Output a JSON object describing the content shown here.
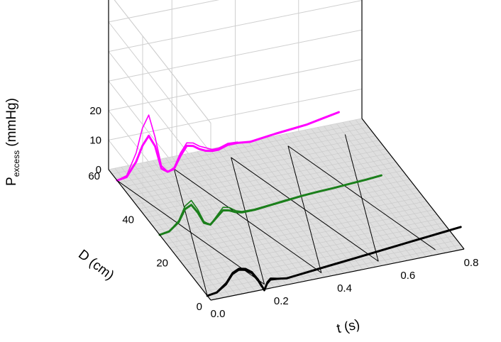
{
  "chart_data": {
    "type": "line",
    "projection": "3d",
    "axes": {
      "t": {
        "label": "t (s)",
        "ticks": [
          "0.0",
          "0.2",
          "0.4",
          "0.6",
          "0.8"
        ],
        "range": [
          0,
          0.8
        ]
      },
      "D": {
        "label": "D (cm)",
        "ticks": [
          "0",
          "20",
          "40",
          "60"
        ],
        "range": [
          0,
          60
        ]
      },
      "P": {
        "label_main": "P",
        "label_sub": "excess",
        "label_unit": " (mmHg)",
        "ticks": [
          "0",
          "10",
          "20"
        ],
        "range": [
          0,
          25
        ]
      }
    },
    "grid": true,
    "floor_plane": true,
    "series": [
      {
        "color": "#ff00ff",
        "D": 55,
        "t": [
          0.0,
          0.03,
          0.06,
          0.08,
          0.1,
          0.12,
          0.14,
          0.16,
          0.18,
          0.2,
          0.22,
          0.24,
          0.26,
          0.28,
          0.3,
          0.32,
          0.35,
          0.38,
          0.42,
          0.46,
          0.5,
          0.55,
          0.6,
          0.65,
          0.7
        ],
        "P": [
          0,
          0.5,
          5,
          10,
          13,
          9,
          1,
          -0.5,
          0,
          4,
          7,
          6.5,
          5,
          4,
          3.5,
          3.5,
          4.5,
          4.5,
          4,
          4.5,
          5,
          5.5,
          6,
          7,
          8
        ]
      },
      {
        "color": "#ff00ff",
        "D": 55,
        "t": [
          0.0,
          0.03,
          0.06,
          0.08,
          0.1,
          0.12,
          0.14,
          0.16,
          0.18,
          0.2,
          0.22,
          0.24,
          0.26,
          0.28,
          0.3,
          0.32,
          0.35,
          0.38
        ],
        "P": [
          0,
          1,
          8,
          16,
          20,
          12,
          2,
          -0.5,
          0.5,
          5,
          8,
          7.5,
          6,
          5,
          4,
          4,
          5,
          4.8
        ]
      },
      {
        "color": "#1b7f1b",
        "D": 30,
        "t": [
          0.0,
          0.03,
          0.06,
          0.08,
          0.1,
          0.12,
          0.14,
          0.16,
          0.18,
          0.2,
          0.22,
          0.24,
          0.26,
          0.3,
          0.35,
          0.4,
          0.45,
          0.5,
          0.55,
          0.6,
          0.65,
          0.7
        ],
        "P": [
          0,
          0.5,
          3,
          7,
          8,
          5,
          1,
          0,
          2,
          4,
          3.5,
          2.5,
          2,
          2,
          2.5,
          3,
          3.5,
          3.8,
          4,
          4.3,
          4.6,
          5
        ]
      },
      {
        "color": "#1b7f1b",
        "D": 30,
        "t": [
          0.0,
          0.03,
          0.06,
          0.08,
          0.1,
          0.12,
          0.14,
          0.16,
          0.18,
          0.2,
          0.22,
          0.24,
          0.26,
          0.3,
          0.35,
          0.4
        ],
        "P": [
          0,
          0.5,
          3.5,
          8,
          9.5,
          6,
          1.5,
          0,
          2.5,
          5,
          4.5,
          3,
          2.3,
          2.2,
          2.7,
          3.2
        ]
      },
      {
        "color": "#000000",
        "D": 2,
        "t": [
          0.0,
          0.03,
          0.06,
          0.08,
          0.1,
          0.12,
          0.14,
          0.16,
          0.17,
          0.18,
          0.19,
          0.2,
          0.22,
          0.25,
          0.3,
          0.35,
          0.4,
          0.45,
          0.5,
          0.55,
          0.6,
          0.65,
          0.7,
          0.75,
          0.8
        ],
        "P": [
          0,
          0.5,
          3,
          6,
          7,
          6.5,
          5,
          2,
          0,
          -2,
          0.5,
          1.5,
          1,
          0.5,
          1,
          1.5,
          2,
          2.5,
          3,
          3.5,
          4,
          4.5,
          5,
          5.5,
          6
        ]
      },
      {
        "color": "#000000",
        "D": 2,
        "t": [
          0.0,
          0.03,
          0.06,
          0.08,
          0.1,
          0.12,
          0.14,
          0.16,
          0.17,
          0.18,
          0.19,
          0.2,
          0.22,
          0.25,
          0.3
        ],
        "P": [
          0,
          0.3,
          2.5,
          5.5,
          6.5,
          6,
          4.5,
          1.5,
          -0.5,
          -1.5,
          0,
          1,
          0.8,
          0.5,
          0.9
        ]
      }
    ],
    "wave_lines": [
      {
        "t": [
          0.0,
          0.18
        ],
        "D": [
          55,
          2
        ]
      },
      {
        "t": [
          0.0,
          0.18
        ],
        "D": [
          2,
          55
        ]
      },
      {
        "t": [
          0.18,
          0.36
        ],
        "D": [
          55,
          2
        ]
      },
      {
        "t": [
          0.18,
          0.36
        ],
        "D": [
          2,
          55
        ]
      },
      {
        "t": [
          0.36,
          0.54
        ],
        "D": [
          55,
          2
        ]
      },
      {
        "t": [
          0.36,
          0.54
        ],
        "D": [
          2,
          55
        ]
      },
      {
        "t": [
          0.54,
          0.72
        ],
        "D": [
          55,
          2
        ]
      },
      {
        "t": [
          0.54,
          0.72
        ],
        "D": [
          2,
          55
        ]
      }
    ]
  }
}
